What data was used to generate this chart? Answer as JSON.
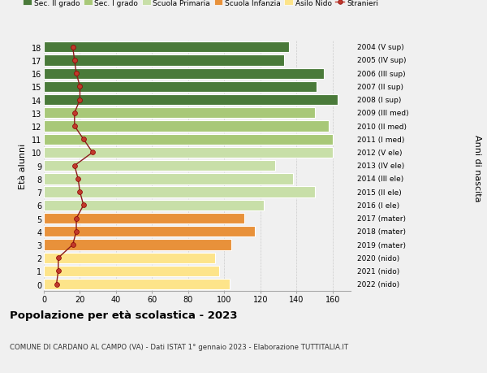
{
  "ages": [
    0,
    1,
    2,
    3,
    4,
    5,
    6,
    7,
    8,
    9,
    10,
    11,
    12,
    13,
    14,
    15,
    16,
    17,
    18
  ],
  "years": [
    "2022 (nido)",
    "2021 (nido)",
    "2020 (nido)",
    "2019 (mater)",
    "2018 (mater)",
    "2017 (mater)",
    "2016 (I ele)",
    "2015 (II ele)",
    "2014 (III ele)",
    "2013 (IV ele)",
    "2012 (V ele)",
    "2011 (I med)",
    "2010 (II med)",
    "2009 (III med)",
    "2008 (I sup)",
    "2007 (II sup)",
    "2006 (III sup)",
    "2005 (IV sup)",
    "2004 (V sup)"
  ],
  "bar_values": [
    103,
    97,
    95,
    104,
    117,
    111,
    122,
    150,
    138,
    128,
    160,
    160,
    158,
    150,
    163,
    151,
    155,
    133,
    136
  ],
  "stranieri": [
    7,
    8,
    8,
    16,
    18,
    18,
    22,
    20,
    19,
    17,
    27,
    22,
    17,
    17,
    20,
    20,
    18,
    17,
    16
  ],
  "bar_colors": [
    "#fde48a",
    "#fde48a",
    "#fde48a",
    "#e8913a",
    "#e8913a",
    "#e8913a",
    "#c8dfa8",
    "#c8dfa8",
    "#c8dfa8",
    "#c8dfa8",
    "#c8dfa8",
    "#a8c878",
    "#a8c878",
    "#a8c878",
    "#4a7a3a",
    "#4a7a3a",
    "#4a7a3a",
    "#4a7a3a",
    "#4a7a3a"
  ],
  "legend_colors": [
    "#4a7a3a",
    "#a8c878",
    "#c8dfa8",
    "#e8913a",
    "#fde48a",
    "#c0392b"
  ],
  "legend_labels": [
    "Sec. II grado",
    "Sec. I grado",
    "Scuola Primaria",
    "Scuola Infanzia",
    "Asilo Nido",
    "Stranieri"
  ],
  "ylabel_left": "Età alunni",
  "ylabel_right": "Anni di nascita",
  "title": "Popolazione per età scolastica - 2023",
  "subtitle": "COMUNE DI CARDANO AL CAMPO (VA) - Dati ISTAT 1° gennaio 2023 - Elaborazione TUTTITALIA.IT",
  "xlim": [
    0,
    170
  ],
  "xticks": [
    0,
    20,
    40,
    60,
    80,
    100,
    120,
    140,
    160
  ],
  "background_color": "#f0f0f0",
  "bar_height": 0.82
}
